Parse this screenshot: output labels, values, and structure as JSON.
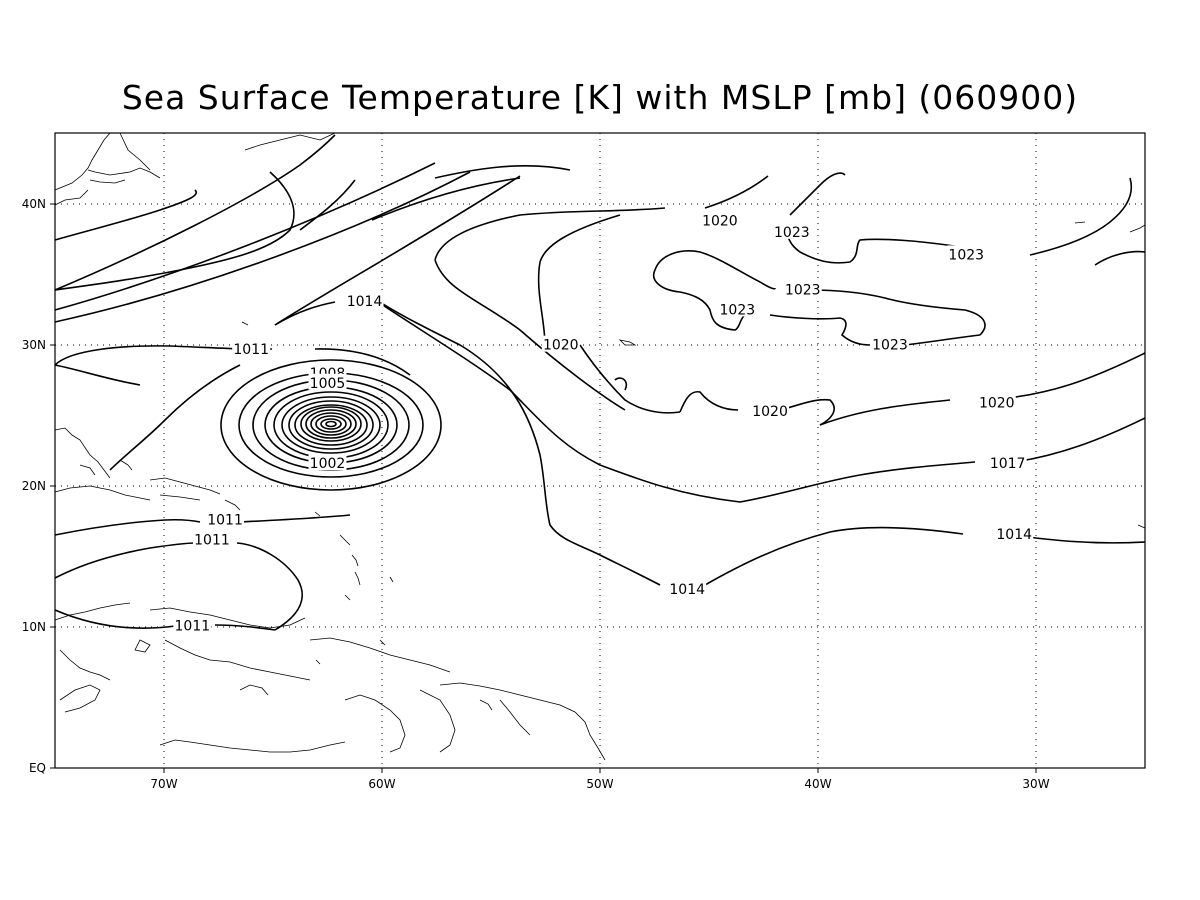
{
  "title": "Sea Surface Temperature [K] with MSLP [mb] (060900)",
  "axes": {
    "lat_labels": [
      "40N",
      "30N",
      "20N",
      "10N",
      "EQ"
    ],
    "lon_labels": [
      "70W",
      "60W",
      "50W",
      "40W",
      "30W"
    ],
    "grid": "dotted",
    "lon_range": [
      -75,
      -25
    ],
    "lat_range": [
      0,
      45
    ]
  },
  "contour_labels": [
    {
      "text": "1020",
      "lon": -44.5,
      "lat": 38.8
    },
    {
      "text": "1023",
      "lon": -41.2,
      "lat": 38.0
    },
    {
      "text": "1023",
      "lon": -33.2,
      "lat": 36.4
    },
    {
      "text": "1023",
      "lon": -40.7,
      "lat": 33.9
    },
    {
      "text": "1023",
      "lon": -43.7,
      "lat": 32.5
    },
    {
      "text": "1023",
      "lon": -36.7,
      "lat": 30.0
    },
    {
      "text": "1014",
      "lon": -60.8,
      "lat": 33.1
    },
    {
      "text": "1020",
      "lon": -51.8,
      "lat": 30.0
    },
    {
      "text": "1011",
      "lon": -66.0,
      "lat": 29.7
    },
    {
      "text": "1008",
      "lon": -62.5,
      "lat": 28.0
    },
    {
      "text": "1005",
      "lon": -62.5,
      "lat": 27.3
    },
    {
      "text": "1002",
      "lon": -62.5,
      "lat": 21.6
    },
    {
      "text": "1020",
      "lon": -42.2,
      "lat": 25.3
    },
    {
      "text": "1020",
      "lon": -31.8,
      "lat": 25.9
    },
    {
      "text": "1017",
      "lon": -31.3,
      "lat": 21.6
    },
    {
      "text": "1011",
      "lon": -67.2,
      "lat": 17.6
    },
    {
      "text": "1011",
      "lon": -67.8,
      "lat": 16.2
    },
    {
      "text": "1014",
      "lon": -31.0,
      "lat": 16.6
    },
    {
      "text": "1014",
      "lon": -46.0,
      "lat": 12.7
    },
    {
      "text": "1011",
      "lon": -68.7,
      "lat": 10.1
    }
  ]
}
